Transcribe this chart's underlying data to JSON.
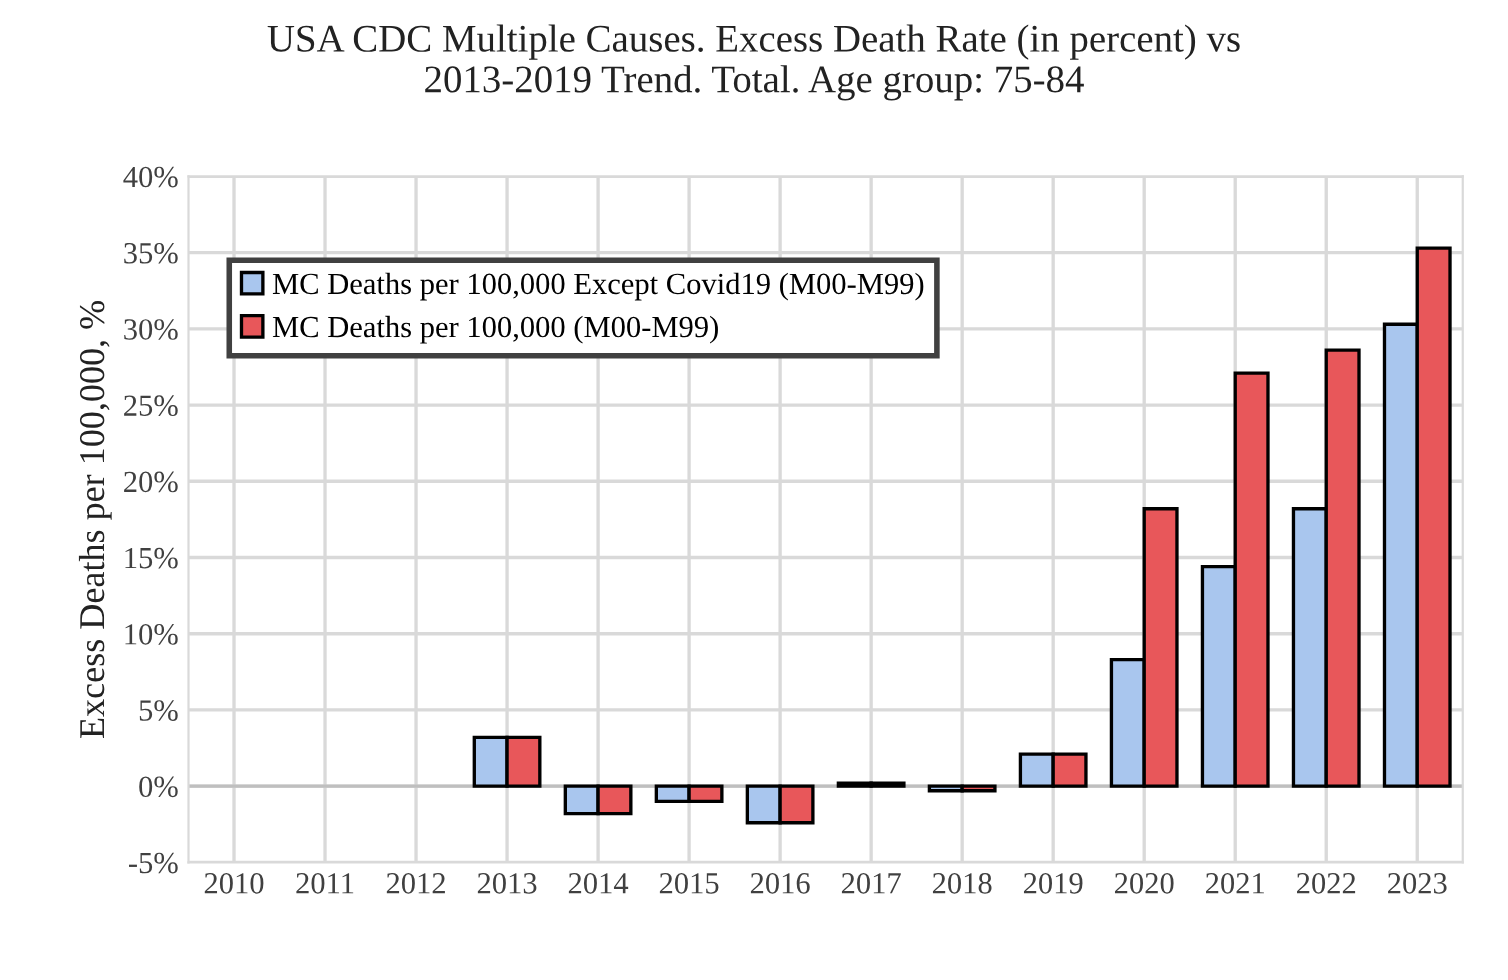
{
  "chart_data": {
    "type": "bar",
    "title": "USA CDC Multiple Causes. Excess Death Rate (in percent) vs\n2013-2019 Trend. Total. Age group: 75-84",
    "ylabel": "Excess Deaths per 100,000, %",
    "categories": [
      "2010",
      "2011",
      "2012",
      "2013",
      "2014",
      "2015",
      "2016",
      "2017",
      "2018",
      "2019",
      "2020",
      "2021",
      "2022",
      "2023"
    ],
    "series": [
      {
        "name": "MC Deaths per 100,000 Except Covid19 (M00-M99)",
        "color": "#a9c6ee",
        "values": [
          null,
          null,
          null,
          3.2,
          -1.8,
          -1.0,
          -2.4,
          0.2,
          -0.3,
          2.1,
          8.3,
          14.4,
          18.2,
          30.3
        ]
      },
      {
        "name": "MC Deaths per 100,000 (M00-M99)",
        "color": "#e8575a",
        "values": [
          null,
          null,
          null,
          3.2,
          -1.8,
          -1.0,
          -2.4,
          0.2,
          -0.3,
          2.1,
          18.2,
          27.1,
          28.6,
          35.3
        ]
      }
    ],
    "ylim": [
      -5,
      40
    ],
    "yticks": [
      {
        "value": -5,
        "label": "-5%"
      },
      {
        "value": 0,
        "label": "0%"
      },
      {
        "value": 5,
        "label": "5%"
      },
      {
        "value": 10,
        "label": "10%"
      },
      {
        "value": 15,
        "label": "15%"
      },
      {
        "value": 20,
        "label": "20%"
      },
      {
        "value": 25,
        "label": "25%"
      },
      {
        "value": 30,
        "label": "30%"
      },
      {
        "value": 35,
        "label": "35%"
      },
      {
        "value": 40,
        "label": "40%"
      }
    ],
    "grid": true,
    "legend": "top left"
  }
}
